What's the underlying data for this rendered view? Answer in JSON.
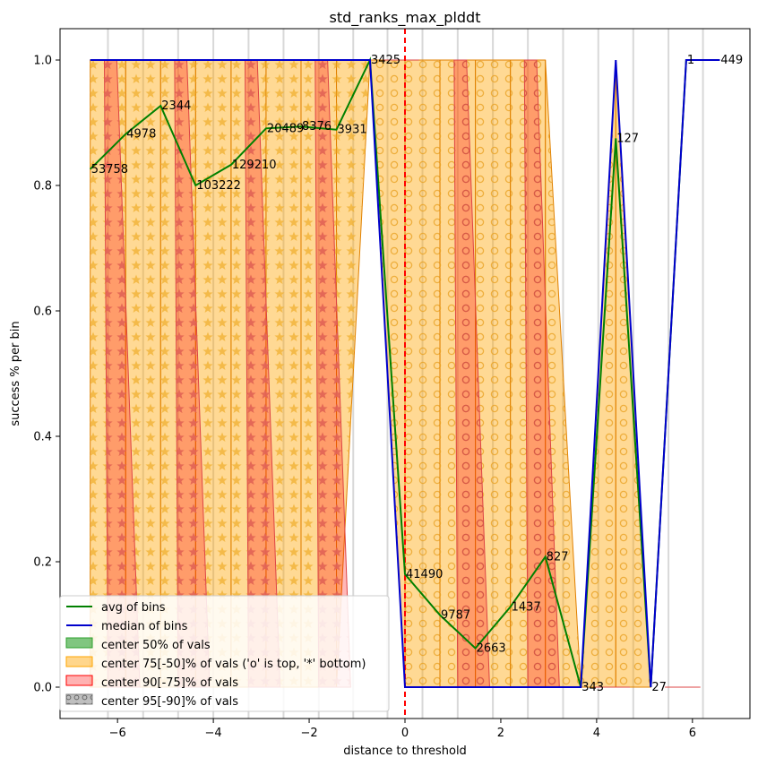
{
  "chart_data": {
    "type": "line",
    "title": "std_ranks_max_plddt",
    "xlabel": "distance to threshold",
    "ylabel": "success % per bin",
    "xlim": [
      -7.2,
      7.2
    ],
    "ylim": [
      -0.05,
      1.05
    ],
    "xticks": [
      -6,
      -4,
      -2,
      0,
      2,
      4,
      6
    ],
    "yticks": [
      0.0,
      0.2,
      0.4,
      0.6,
      0.8,
      1.0
    ],
    "xtick_labels": [
      "−6",
      "−4",
      "−2",
      "0",
      "2",
      "4",
      "6"
    ],
    "ytick_labels": [
      "0.0",
      "0.2",
      "0.4",
      "0.6",
      "0.8",
      "1.0"
    ],
    "grid": "vertical bin lines",
    "threshold_x": 0,
    "legend_position": "lower-left",
    "x": [
      -6.57,
      -5.83,
      -5.1,
      -4.37,
      -3.63,
      -2.9,
      -2.17,
      -1.43,
      -0.73,
      0.0,
      0.73,
      1.47,
      2.2,
      2.93,
      3.67,
      4.4,
      5.13,
      5.87,
      6.57
    ],
    "series": [
      {
        "name": "avg of bins",
        "color": "#008000",
        "values": [
          0.826,
          0.882,
          0.927,
          0.8,
          0.833,
          0.891,
          0.894,
          0.889,
          1.0,
          0.18,
          0.115,
          0.062,
          0.128,
          0.208,
          0.0,
          0.875,
          0.0,
          1.0,
          1.0
        ]
      },
      {
        "name": "median of bins",
        "color": "#0000cc",
        "values": [
          1.0,
          1.0,
          1.0,
          1.0,
          1.0,
          1.0,
          1.0,
          1.0,
          1.0,
          0.0,
          0.0,
          0.0,
          0.0,
          0.0,
          0.0,
          1.0,
          0.0,
          1.0,
          1.0
        ]
      }
    ],
    "bin_counts": [
      "53758",
      "4978",
      "2344",
      "103222",
      "129210",
      "20489",
      "8376",
      "3931",
      "3425",
      "41490",
      "9787",
      "2663",
      "1437",
      "827",
      "343",
      "127",
      "27",
      "1",
      "449"
    ],
    "bands": [
      {
        "name": "center 50% of vals",
        "color": "#2ca02c",
        "lower": [
          1,
          1,
          1,
          1,
          1,
          1,
          1,
          1,
          1,
          0,
          0,
          0,
          0,
          0,
          0,
          1,
          0,
          1,
          1
        ],
        "upper": [
          1,
          1,
          1,
          1,
          1,
          1,
          1,
          1,
          1,
          0,
          0,
          0,
          0,
          0,
          0,
          1,
          0,
          1,
          1
        ]
      },
      {
        "name": "center 75[-50]% of vals ('o' is top, '*' bottom)",
        "color": "#ffa500",
        "lower": [
          0,
          0,
          0,
          0,
          0,
          0,
          0,
          0,
          1,
          0,
          0,
          0,
          0,
          0,
          0,
          0,
          0,
          1,
          1
        ],
        "upper": [
          1,
          1,
          1,
          1,
          1,
          1,
          1,
          1,
          1,
          1,
          1,
          1,
          1,
          1,
          0,
          1,
          0,
          1,
          1
        ]
      },
      {
        "name": "center 90[-75]% of vals",
        "color": "#ff0000",
        "lower": [
          0,
          0,
          0,
          0,
          0,
          0,
          0,
          0,
          1,
          0,
          0,
          0,
          0,
          0,
          0,
          0,
          0,
          1,
          1
        ],
        "upper": [
          1,
          1,
          1,
          1,
          1,
          1,
          1,
          1,
          1,
          1,
          1,
          1,
          1,
          1,
          0,
          1,
          0,
          1,
          1
        ]
      },
      {
        "name": "center 95[-90]% of vals",
        "color": "#808080",
        "lower": [
          0,
          0,
          0,
          0,
          0,
          0,
          0,
          0,
          1,
          0,
          0,
          0,
          0,
          0,
          0,
          0,
          0,
          1,
          1
        ],
        "upper": [
          1,
          1,
          1,
          1,
          1,
          1,
          1,
          1,
          1,
          1,
          1,
          1,
          1,
          1,
          0,
          1,
          0,
          1,
          1
        ]
      }
    ]
  }
}
